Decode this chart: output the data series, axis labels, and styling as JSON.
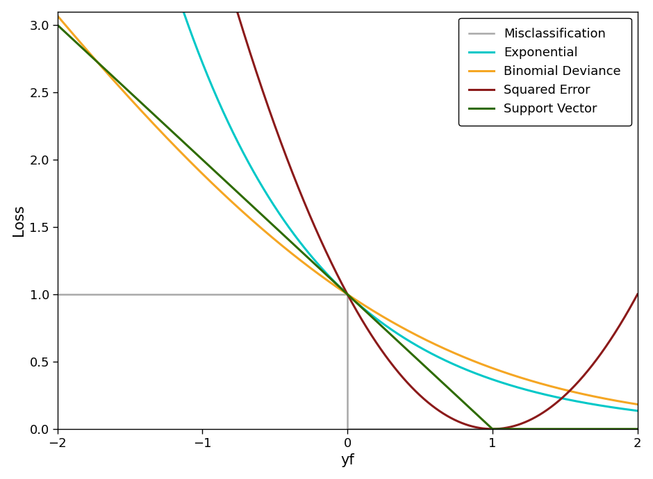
{
  "xlabel": "yf",
  "ylabel": "Loss",
  "xlim": [
    -2,
    2
  ],
  "ylim": [
    0.0,
    3.1
  ],
  "xticks": [
    -2,
    -1,
    0,
    1,
    2
  ],
  "yticks": [
    0.0,
    0.5,
    1.0,
    1.5,
    2.0,
    2.5,
    3.0
  ],
  "background_color": "#ffffff",
  "plot_bg_color": "#ffffff",
  "curves": {
    "Misclassification": {
      "color": "#a8a8a8",
      "lw": 1.8
    },
    "Exponential": {
      "color": "#00c8c8",
      "lw": 2.2
    },
    "Binomial Deviance": {
      "color": "#f5a623",
      "lw": 2.2
    },
    "Squared Error": {
      "color": "#8b1a1a",
      "lw": 2.2
    },
    "Support Vector": {
      "color": "#2e6b00",
      "lw": 2.2
    }
  },
  "legend_loc": "upper right",
  "legend_fontsize": 13,
  "axis_label_fontsize": 15,
  "tick_fontsize": 13
}
